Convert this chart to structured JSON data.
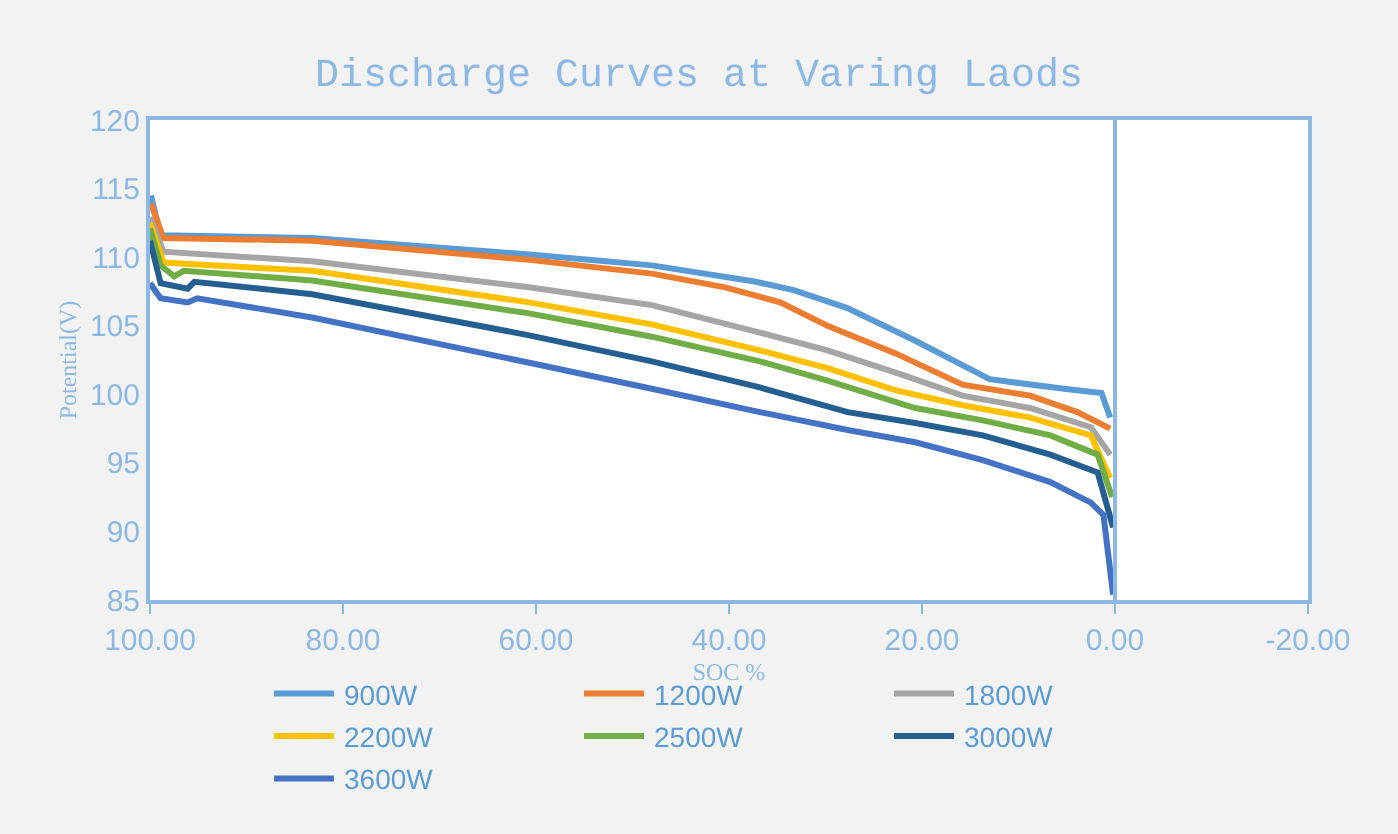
{
  "chart_data": {
    "type": "line",
    "title": "Discharge Curves at Varing Laods",
    "xlabel": "SOC %",
    "ylabel": "Potential(V)",
    "xlim": [
      100,
      -20
    ],
    "xticks": [
      {
        "value": 100,
        "label": "100.00"
      },
      {
        "value": 80,
        "label": "80.00"
      },
      {
        "value": 60,
        "label": "60.00"
      },
      {
        "value": 40,
        "label": "40.00"
      },
      {
        "value": 20,
        "label": "20.00"
      },
      {
        "value": 0,
        "label": "0.00"
      },
      {
        "value": -20,
        "label": "-20.00"
      }
    ],
    "ylim": [
      85,
      120
    ],
    "yticks": [
      85,
      90,
      95,
      100,
      105,
      110,
      115,
      120
    ],
    "legend": "bottom",
    "marker": "none",
    "line_style": "solid",
    "ref_lines": [
      {
        "axis": "x",
        "value": 0,
        "color": "#8db8e3"
      }
    ],
    "series": [
      {
        "name": "900W",
        "color": "#5b9bd5",
        "x": [
          99.9,
          98.9,
          83.2,
          60.7,
          48,
          37.2,
          33.3,
          27.8,
          20.7,
          13.0,
          5.3,
          1.4,
          0.5
        ],
        "values": [
          114.5,
          111.6,
          111.4,
          110.2,
          109.4,
          108.2,
          107.6,
          106.3,
          103.9,
          101.1,
          100.4,
          100.1,
          98.3
        ]
      },
      {
        "name": "1200W",
        "color": "#ed7d31",
        "x": [
          99.9,
          98.6,
          83.2,
          60.7,
          48,
          40.4,
          34.7,
          29.8,
          22.8,
          15.8,
          8.8,
          3.9,
          0.5
        ],
        "values": [
          113.9,
          111.4,
          111.2,
          109.8,
          108.8,
          107.8,
          106.7,
          105.0,
          103.0,
          100.7,
          99.9,
          98.7,
          97.5
        ]
      },
      {
        "name": "1800W",
        "color": "#a5a5a5",
        "x": [
          100,
          98.6,
          83.2,
          60.7,
          48,
          36.8,
          29.8,
          22.8,
          15.8,
          8.8,
          2.5,
          0.5
        ],
        "values": [
          112.9,
          110.4,
          109.7,
          107.8,
          106.5,
          104.5,
          103.2,
          101.6,
          99.9,
          99.0,
          97.6,
          95.6
        ]
      },
      {
        "name": "2200W",
        "color": "#ffc000",
        "x": [
          100,
          98.6,
          83.2,
          60.7,
          48,
          36.8,
          29.8,
          22.8,
          15.8,
          8.8,
          2.5,
          0.5
        ],
        "values": [
          112.5,
          109.6,
          109.0,
          106.7,
          105.1,
          103.2,
          101.9,
          100.3,
          99.2,
          98.3,
          97.0,
          93.9
        ]
      },
      {
        "name": "2500W",
        "color": "#70ad47",
        "x": [
          100,
          98.9,
          97.5,
          96.5,
          83.2,
          60.7,
          48,
          36.8,
          29.8,
          20.7,
          13.7,
          6.7,
          1.8,
          0.3
        ],
        "values": [
          112.1,
          109.4,
          108.6,
          109.0,
          108.3,
          105.9,
          104.2,
          102.4,
          101.0,
          99.0,
          98.1,
          97.0,
          95.6,
          92.5
        ]
      },
      {
        "name": "3000W",
        "color": "#255e91",
        "x": [
          100,
          98.9,
          96.1,
          95.4,
          83.2,
          60.7,
          48,
          36.8,
          27.7,
          20.7,
          13.7,
          6.7,
          1.8,
          0.2
        ],
        "values": [
          111.2,
          108.1,
          107.7,
          108.2,
          107.3,
          104.3,
          102.4,
          100.5,
          98.7,
          97.9,
          97.0,
          95.6,
          94.3,
          90.3
        ]
      },
      {
        "name": "3600W",
        "color": "#4472c4",
        "x": [
          100,
          98.9,
          96.1,
          95.1,
          83.2,
          60.7,
          48,
          36.8,
          27.7,
          20.7,
          13.7,
          6.7,
          2.5,
          1.2,
          0.2
        ],
        "values": [
          108.1,
          107.0,
          106.7,
          107.0,
          105.6,
          102.3,
          100.4,
          98.7,
          97.4,
          96.5,
          95.2,
          93.6,
          92.1,
          91.2,
          85.4
        ]
      }
    ]
  }
}
